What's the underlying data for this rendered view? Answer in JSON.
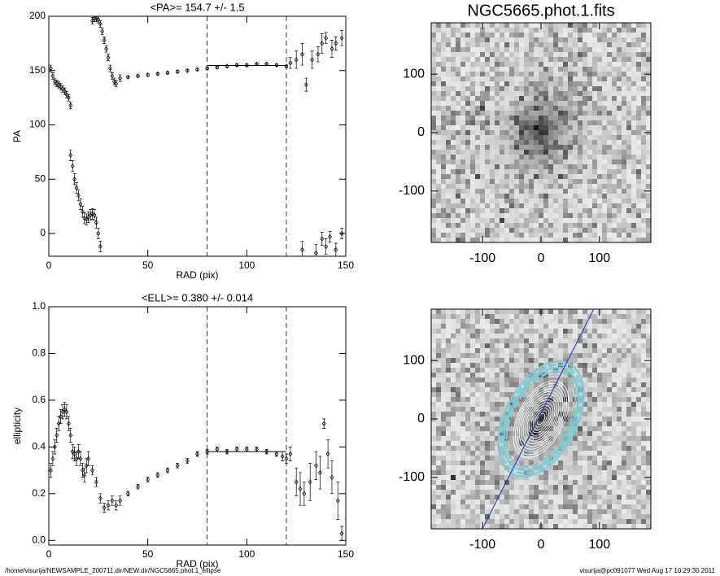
{
  "chart_data": [
    {
      "type": "scatter",
      "title": "<PA>= 154.7 +/-   1.5",
      "xlabel": "RAD (pix)",
      "ylabel": "PA",
      "xlim": [
        0,
        150
      ],
      "ylim": [
        -21,
        200
      ],
      "xticks": [
        0,
        50,
        100,
        150
      ],
      "yticks": [
        0,
        50,
        100,
        150,
        200
      ],
      "vlines": [
        80,
        120
      ],
      "fit": {
        "x": [
          80,
          120
        ],
        "value": 154.7
      },
      "color": "#000000",
      "x": [
        1,
        2,
        3,
        4,
        5,
        6,
        7,
        8,
        9,
        10,
        11,
        11,
        12,
        13,
        14,
        15,
        16,
        17,
        18,
        19,
        20,
        21,
        22,
        23,
        24,
        25,
        26,
        22,
        23,
        24,
        25,
        26,
        27,
        28,
        29,
        30,
        31,
        32,
        33,
        34,
        36,
        40,
        45,
        50,
        55,
        60,
        65,
        70,
        75,
        80,
        85,
        90,
        95,
        100,
        105,
        110,
        115,
        120,
        122,
        125,
        128,
        130,
        133,
        136,
        138,
        140,
        143,
        145,
        148,
        128,
        135,
        138,
        140,
        142,
        145,
        148
      ],
      "values": [
        152,
        145,
        140,
        138,
        137,
        135,
        133,
        131,
        128,
        125,
        118,
        72,
        62,
        50,
        42,
        35,
        27,
        20,
        14,
        13,
        15,
        17,
        18,
        17,
        10,
        0,
        -12,
        196,
        198,
        198,
        197,
        193,
        186,
        178,
        170,
        162,
        152,
        145,
        140,
        138,
        143,
        144,
        145,
        146,
        147,
        148,
        149,
        150,
        151,
        152,
        153,
        154,
        155,
        155,
        156,
        156,
        155,
        154,
        157,
        160,
        165,
        137,
        160,
        165,
        175,
        180,
        170,
        175,
        180,
        -15,
        -18,
        -5,
        -12,
        -3,
        -15,
        0
      ],
      "errors": [
        3,
        3,
        3,
        3,
        3,
        3,
        3,
        3,
        3,
        3,
        3,
        5,
        5,
        5,
        5,
        5,
        5,
        5,
        5,
        5,
        5,
        5,
        5,
        5,
        5,
        5,
        5,
        3,
        3,
        3,
        3,
        3,
        3,
        3,
        3,
        3,
        3,
        3,
        3,
        3,
        3,
        1,
        1,
        1,
        1,
        1,
        1,
        1,
        1,
        1,
        1,
        1,
        1,
        1,
        1,
        1,
        1,
        1,
        5,
        8,
        10,
        6,
        8,
        7,
        9,
        5,
        8,
        6,
        7,
        8,
        8,
        6,
        7,
        5,
        6,
        5
      ]
    },
    {
      "type": "scatter",
      "title": "<ELL>= 0.380 +/-  0.014",
      "xlabel": "RAD (pix)",
      "ylabel": "ellipticity",
      "xlim": [
        0,
        150
      ],
      "ylim": [
        -0.02,
        1.0
      ],
      "xticks": [
        0,
        50,
        100,
        150
      ],
      "yticks": [
        {
          "value": 0,
          "label": "0.0"
        },
        0.2,
        0.4,
        0.6,
        0.8,
        {
          "value": 1,
          "label": "1.0"
        }
      ],
      "vlines": [
        80,
        120
      ],
      "fit": {
        "x": [
          80,
          120
        ],
        "value": 0.38
      },
      "color": "#000000",
      "x": [
        1,
        2,
        3,
        4,
        5,
        6,
        7,
        8,
        9,
        10,
        11,
        12,
        13,
        14,
        15,
        16,
        17,
        18,
        19,
        20,
        22,
        24,
        26,
        28,
        30,
        32,
        34,
        36,
        40,
        45,
        50,
        55,
        60,
        65,
        70,
        75,
        80,
        85,
        90,
        95,
        100,
        105,
        110,
        115,
        118,
        120,
        122,
        125,
        127,
        129,
        132,
        135,
        137,
        139,
        141,
        143,
        146,
        148
      ],
      "values": [
        0.3,
        0.35,
        0.4,
        0.45,
        0.5,
        0.53,
        0.55,
        0.56,
        0.55,
        0.5,
        0.45,
        0.38,
        0.37,
        0.35,
        0.38,
        0.35,
        0.3,
        0.28,
        0.32,
        0.35,
        0.3,
        0.25,
        0.18,
        0.14,
        0.15,
        0.17,
        0.15,
        0.17,
        0.2,
        0.23,
        0.26,
        0.28,
        0.3,
        0.32,
        0.34,
        0.37,
        0.38,
        0.39,
        0.38,
        0.39,
        0.39,
        0.39,
        0.38,
        0.37,
        0.36,
        0.35,
        0.37,
        0.25,
        0.22,
        0.2,
        0.25,
        0.32,
        0.29,
        0.5,
        0.37,
        0.27,
        0.17,
        0.03
      ],
      "errors": [
        0.03,
        0.03,
        0.03,
        0.03,
        0.03,
        0.03,
        0.03,
        0.03,
        0.03,
        0.03,
        0.03,
        0.03,
        0.03,
        0.03,
        0.03,
        0.03,
        0.03,
        0.03,
        0.03,
        0.03,
        0.02,
        0.02,
        0.02,
        0.02,
        0.02,
        0.02,
        0.02,
        0.02,
        0.01,
        0.01,
        0.01,
        0.01,
        0.01,
        0.01,
        0.01,
        0.01,
        0.01,
        0.01,
        0.01,
        0.01,
        0.01,
        0.01,
        0.01,
        0.01,
        0.02,
        0.02,
        0.03,
        0.06,
        0.07,
        0.05,
        0.08,
        0.06,
        0.07,
        0.02,
        0.06,
        0.07,
        0.08,
        0.03
      ]
    },
    {
      "type": "image",
      "title": "NGC5665.phot.1.fits",
      "xlim": [
        -188,
        188
      ],
      "ylim": [
        -188,
        188
      ],
      "xticks": [
        -100,
        0,
        100
      ],
      "yticks": [
        -100,
        0,
        100
      ],
      "contours": false
    },
    {
      "type": "image",
      "xlim": [
        -188,
        188
      ],
      "ylim": [
        -188,
        188
      ],
      "xticks": [
        -100,
        0,
        100
      ],
      "yticks": [
        -100,
        0,
        100
      ],
      "contours": true
    }
  ],
  "footer": {
    "left": "/home/visurija/NEWSAMPLE_200711.dir/NEW.dir/NGC5665.phot.1_ellipse",
    "right": "visurija@pc091077  Wed Aug 17 10:29:30 2011"
  }
}
